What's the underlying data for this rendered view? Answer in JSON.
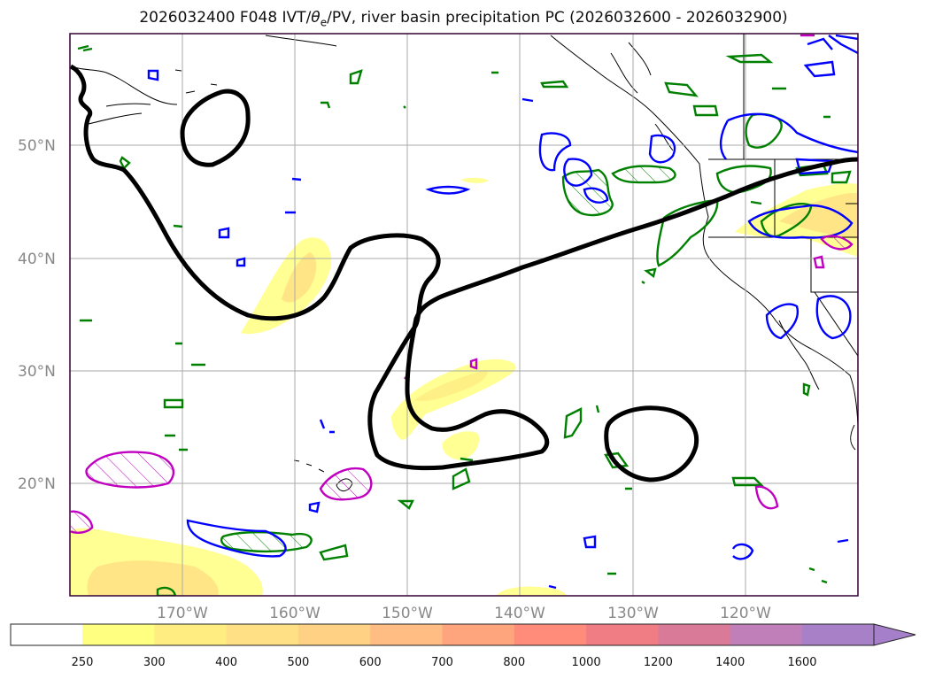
{
  "header": {
    "title_pre": "2026032400 F048 IVT/",
    "theta": "θ",
    "theta_sub": "e",
    "title_post": "/PV, river basin precipitation PC (2026032600 - 2026032900)"
  },
  "map": {
    "lat_labels": [
      "50°N",
      "40°N",
      "30°N",
      "20°N"
    ],
    "lon_labels": [
      "170°W",
      "160°W",
      "150°W",
      "140°W",
      "130°W",
      "120°W"
    ],
    "extent": {
      "lon_min": -180,
      "lon_max": -110,
      "lat_min": 10,
      "lat_max": 60
    },
    "colors": {
      "ivt_contour": "#000000",
      "green_contour": "#008000",
      "blue_contour": "#0000ff",
      "magenta_contour": "#c000c0",
      "frame": "#330033"
    }
  },
  "colorbar": {
    "labels": [
      "250",
      "300",
      "400",
      "500",
      "600",
      "700",
      "800",
      "1000",
      "1200",
      "1400",
      "1600"
    ],
    "colors": [
      "#ffff80",
      "#ffed82",
      "#ffe084",
      "#ffd185",
      "#ffbd83",
      "#ffa57e",
      "#ff8c7a",
      "#f07d84",
      "#d87a98",
      "#c07fb8",
      "#a880c8"
    ],
    "extend_color": "#a57fc9"
  }
}
